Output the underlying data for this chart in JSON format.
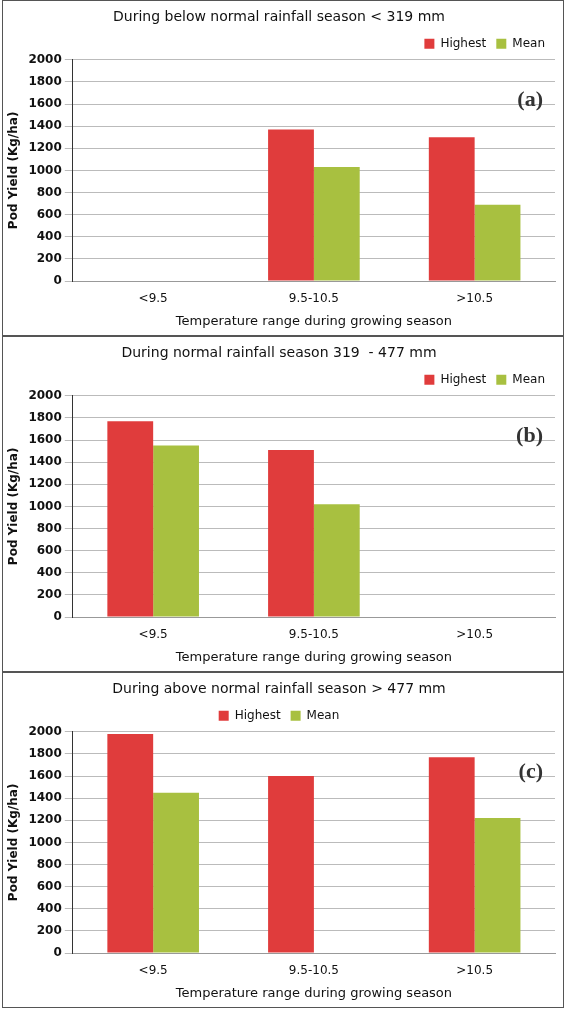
{
  "chart_data": [
    {
      "type": "bar",
      "title": "During below normal rainfall season < 319 mm",
      "xlabel": "Temperature range during growing season",
      "ylabel": "Pod Yield (Kg/ha)",
      "categories": [
        "<9.5",
        "9.5-10.5",
        ">10.5"
      ],
      "series": [
        {
          "name": "Highest",
          "color": "#e03c3c",
          "values": [
            null,
            1370,
            1300
          ]
        },
        {
          "name": "Mean",
          "color": "#a8c040",
          "values": [
            null,
            1030,
            690
          ]
        }
      ],
      "ylim": [
        0,
        2000
      ],
      "yticks": [
        0,
        200,
        400,
        600,
        800,
        1000,
        1200,
        1400,
        1600,
        1800,
        2000
      ],
      "grid": "y",
      "legend": "top right",
      "annotations": [
        "(a)"
      ]
    },
    {
      "type": "bar",
      "title": "During normal rainfall season 319  - 477 mm",
      "xlabel": "Temperature range during growing season",
      "ylabel": "Pod Yield (Kg/ha)",
      "categories": [
        "<9.5",
        "9.5-10.5",
        ">10.5"
      ],
      "series": [
        {
          "name": "Highest",
          "color": "#e03c3c",
          "values": [
            1770,
            1510,
            null
          ]
        },
        {
          "name": "Mean",
          "color": "#a8c040",
          "values": [
            1550,
            1020,
            null
          ]
        }
      ],
      "ylim": [
        0,
        2000
      ],
      "yticks": [
        0,
        200,
        400,
        600,
        800,
        1000,
        1200,
        1400,
        1600,
        1800,
        2000
      ],
      "grid": "y",
      "legend": "top right",
      "annotations": [
        "(b)"
      ]
    },
    {
      "type": "bar",
      "title": "During above normal rainfall season > 477 mm",
      "xlabel": "Temperature range during growing season",
      "ylabel": "Pod Yield (Kg/ha)",
      "categories": [
        "<9.5",
        "9.5-10.5",
        ">10.5"
      ],
      "series": [
        {
          "name": "Highest",
          "color": "#e03c3c",
          "values": [
            1980,
            1600,
            1770
          ]
        },
        {
          "name": "Mean",
          "color": "#a8c040",
          "values": [
            1450,
            null,
            1220
          ]
        }
      ],
      "ylim": [
        0,
        2000
      ],
      "yticks": [
        0,
        200,
        400,
        600,
        800,
        1000,
        1200,
        1400,
        1600,
        1800,
        2000
      ],
      "grid": "y",
      "legend": "top",
      "annotations": [
        "(c)"
      ]
    }
  ]
}
